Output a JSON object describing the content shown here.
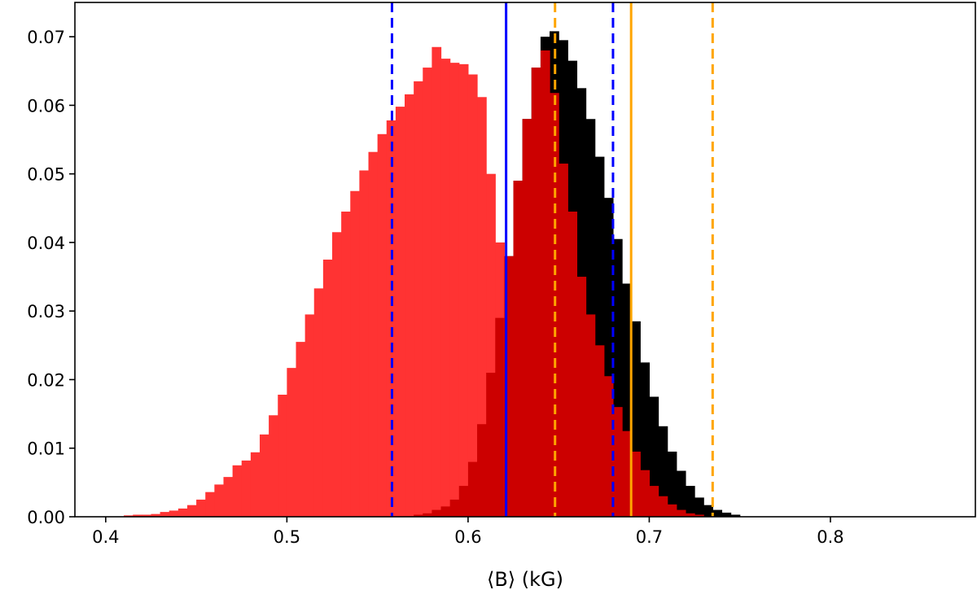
{
  "chart_data": {
    "type": "histogram",
    "title": "",
    "xlabel": "⟨B⟩ (kG)",
    "ylabel": "",
    "xlim": [
      0.383,
      0.88
    ],
    "ylim": [
      0.0,
      0.075
    ],
    "xticks": [
      0.4,
      0.5,
      0.6,
      0.7,
      0.8
    ],
    "xtick_labels": [
      "0.4",
      "0.5",
      "0.6",
      "0.7",
      "0.8"
    ],
    "yticks": [
      0.0,
      0.01,
      0.02,
      0.03,
      0.04,
      0.05,
      0.06,
      0.07
    ],
    "ytick_labels": [
      "0.00",
      "0.01",
      "0.02",
      "0.03",
      "0.04",
      "0.05",
      "0.06",
      "0.07"
    ],
    "grid": false,
    "series": [
      {
        "color": "#000000",
        "bin_start": 0.57,
        "bin_width": 0.005,
        "values": [
          0.0003,
          0.0005,
          0.001,
          0.0015,
          0.0025,
          0.0045,
          0.008,
          0.0135,
          0.021,
          0.029,
          0.038,
          0.049,
          0.058,
          0.0655,
          0.07,
          0.0708,
          0.0695,
          0.0665,
          0.0625,
          0.058,
          0.0525,
          0.0465,
          0.0405,
          0.034,
          0.0285,
          0.0225,
          0.0175,
          0.0132,
          0.0095,
          0.0067,
          0.0045,
          0.0028,
          0.0017,
          0.001,
          0.0006,
          0.0003
        ]
      },
      {
        "color": "#ff3333",
        "bin_start": 0.41,
        "bin_width": 0.005,
        "values": [
          0.0002,
          0.0003,
          0.0003,
          0.0004,
          0.0007,
          0.0009,
          0.0012,
          0.0017,
          0.0025,
          0.0036,
          0.0047,
          0.0058,
          0.0075,
          0.0082,
          0.0094,
          0.012,
          0.0148,
          0.0178,
          0.0217,
          0.0255,
          0.0295,
          0.0333,
          0.0375,
          0.0415,
          0.0445,
          0.0475,
          0.0505,
          0.0532,
          0.0558,
          0.0578,
          0.0598,
          0.0616,
          0.0635,
          0.0655,
          0.0685,
          0.0668,
          0.0662,
          0.066,
          0.0645,
          0.0612,
          0.05,
          0.04,
          0.03,
          0.02,
          0.012,
          0.007,
          0.004,
          0.002,
          0.001
        ]
      },
      {
        "color": "#cc0000",
        "bin_start": 0.57,
        "bin_width": 0.005,
        "values": [
          0.0003,
          0.0005,
          0.001,
          0.0015,
          0.0025,
          0.0045,
          0.008,
          0.0135,
          0.021,
          0.029,
          0.038,
          0.049,
          0.058,
          0.0655,
          0.068,
          0.0618,
          0.0515,
          0.0445,
          0.035,
          0.0295,
          0.025,
          0.0205,
          0.016,
          0.0125,
          0.0095,
          0.0068,
          0.0045,
          0.003,
          0.0018,
          0.001,
          0.0005,
          0.0003
        ]
      }
    ],
    "reference_lines": [
      {
        "x": 0.558,
        "color": "#0000ff",
        "style": "dashed"
      },
      {
        "x": 0.621,
        "color": "#0000ff",
        "style": "solid"
      },
      {
        "x": 0.68,
        "color": "#0000ff",
        "style": "dashed"
      },
      {
        "x": 0.648,
        "color": "#ffa500",
        "style": "dashed"
      },
      {
        "x": 0.69,
        "color": "#ffa500",
        "style": "solid"
      },
      {
        "x": 0.735,
        "color": "#ffa500",
        "style": "dashed"
      }
    ]
  }
}
